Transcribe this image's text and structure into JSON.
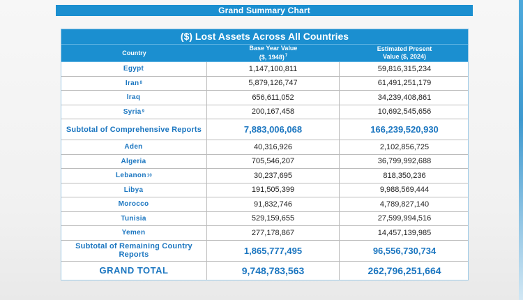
{
  "banner": {
    "title": "Grand Summary Chart"
  },
  "table": {
    "title": "($) Lost Assets Across All Countries",
    "columns": {
      "country": "Country",
      "base_line1": "Base Year Value",
      "base_line2": "($, 1948)",
      "base_footnote": "7",
      "present_line1": "Estimated Present",
      "present_line2": "Value ($, 2024)"
    },
    "rows": [
      {
        "country": "Egypt",
        "footnote": "",
        "base": "1,147,100,811",
        "present": "59,816,315,234"
      },
      {
        "country": "Iran",
        "footnote": "8",
        "base": "5,879,126,747",
        "present": "61,491,251,179"
      },
      {
        "country": "Iraq",
        "footnote": "",
        "base": "656,611,052",
        "present": "34,239,408,861"
      },
      {
        "country": "Syria",
        "footnote": "9",
        "base": "200,167,458",
        "present": "10,692,545,656"
      },
      {
        "country": "Subtotal of Comprehensive Reports",
        "footnote": "",
        "base": "7,883,006,068",
        "present": "166,239,520,930"
      },
      {
        "country": "Aden",
        "footnote": "",
        "base": "40,316,926",
        "present": "2,102,856,725"
      },
      {
        "country": "Algeria",
        "footnote": "",
        "base": "705,546,207",
        "present": "36,799,992,688"
      },
      {
        "country": "Lebanon",
        "footnote": "10",
        "base": "30,237,695",
        "present": "818,350,236"
      },
      {
        "country": "Libya",
        "footnote": "",
        "base": "191,505,399",
        "present": "9,988,569,444"
      },
      {
        "country": "Morocco",
        "footnote": "",
        "base": "91,832,746",
        "present": "4,789,827,140"
      },
      {
        "country": "Tunisia",
        "footnote": "",
        "base": "529,159,655",
        "present": "27,599,994,516"
      },
      {
        "country": "Yemen",
        "footnote": "",
        "base": "277,178,867",
        "present": "14,457,139,985"
      },
      {
        "country": "Subtotal of Remaining Country Reports",
        "footnote": "",
        "base": "1,865,777,495",
        "present": "96,556,730,734"
      },
      {
        "country": "GRAND TOTAL",
        "footnote": "",
        "base": "9,748,783,563",
        "present": "262,796,251,664"
      }
    ]
  },
  "colors": {
    "header_blue": "#1b8fd0",
    "label_blue": "#1b76c0",
    "grid": "#bcbcbc"
  }
}
